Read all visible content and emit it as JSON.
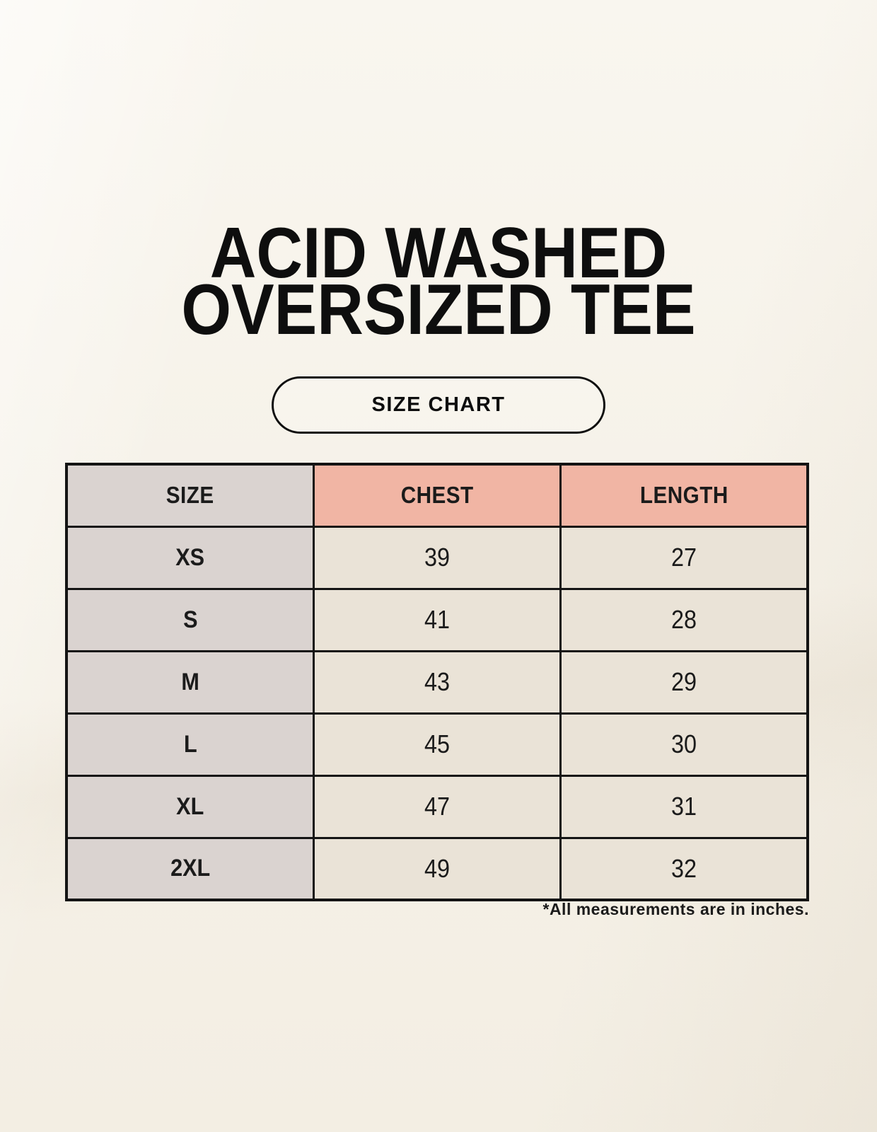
{
  "header": {
    "title_line1": "ACID WASHED",
    "title_line2": "OVERSIZED TEE",
    "button_label": "SIZE CHART"
  },
  "chart_data": {
    "type": "table",
    "title": "ACID WASHED OVERSIZED TEE",
    "columns": [
      "SIZE",
      "CHEST",
      "LENGTH"
    ],
    "rows": [
      [
        "XS",
        "39",
        "27"
      ],
      [
        "S",
        "41",
        "28"
      ],
      [
        "M",
        "43",
        "29"
      ],
      [
        "L",
        "45",
        "30"
      ],
      [
        "XL",
        "47",
        "31"
      ],
      [
        "2XL",
        "49",
        "32"
      ]
    ],
    "footnote": "*All measurements are in inches.",
    "units": "inches",
    "layout_hints": {
      "columns_equal_width": true,
      "size_column_highlight": "gray",
      "measure_header_highlight": "salmon",
      "footnote_alignment": "right"
    }
  },
  "colors": {
    "background": "#f6f2e9",
    "header_size_bg": "#dad3d0",
    "header_measure_bg": "#f1b5a4",
    "size_col_bg": "#dad3d0",
    "value_cell_bg": "#eae3d7",
    "border": "#141414",
    "text": "#1b1b1b",
    "title_color": "#0e0e0e"
  }
}
